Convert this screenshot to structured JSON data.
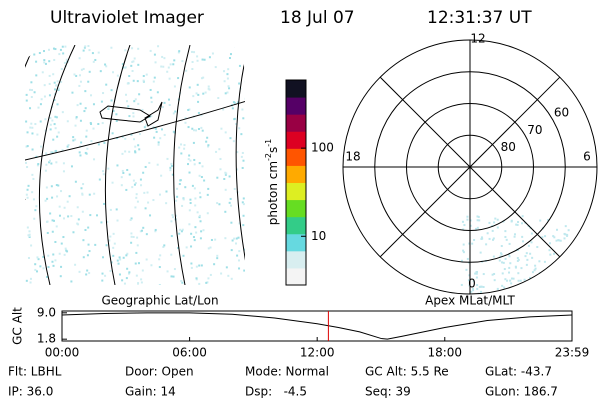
{
  "header": {
    "title": "Ultraviolet Imager",
    "date": "18 Jul 07",
    "time": "12:31:37 UT"
  },
  "map": {
    "caption": "Geographic Lat/Lon"
  },
  "colorbar": {
    "label": "photon cm",
    "label_exp1": "-2",
    "label_unit2": "s",
    "label_exp2": "-1",
    "lim": [
      2.8,
      593
    ],
    "ticks": [
      10,
      100
    ],
    "log": true,
    "colors": [
      "#f4f4f4",
      "#d8eef0",
      "#66d9e0",
      "#33cc88",
      "#66dd22",
      "#ddee22",
      "#ffaa00",
      "#ff5500",
      "#dd0022",
      "#990044",
      "#550066",
      "#111122"
    ]
  },
  "polar": {
    "caption": "Apex MLat/MLT",
    "mlt_labels": {
      "top": "12",
      "left": "18",
      "right": "6",
      "bottom": "0"
    },
    "rings": [
      80,
      70,
      60
    ]
  },
  "chart_data": {
    "type": "line",
    "ylabel": "GC Alt",
    "x": [
      0,
      2,
      4,
      6,
      8,
      10,
      12,
      13,
      14,
      15,
      15.3,
      16,
      18,
      20,
      22,
      23.983
    ],
    "values": [
      8.4,
      8.8,
      9.0,
      9.0,
      8.6,
      7.6,
      6.0,
      5.0,
      3.8,
      2.0,
      1.8,
      2.6,
      5.0,
      6.9,
      7.9,
      8.4
    ],
    "color": "#000000",
    "marker_color": "#dd0000",
    "xlim": [
      0,
      23.983
    ],
    "ylim": [
      1.3,
      9.5
    ],
    "xticks": [
      {
        "value": 0,
        "label": "00:00"
      },
      {
        "value": 6,
        "label": "06:00"
      },
      {
        "value": 12,
        "label": "12:00"
      },
      {
        "value": 18,
        "label": "18:00"
      },
      {
        "value": 23.983,
        "label": "23:59"
      }
    ],
    "yticks": [
      {
        "value": 9,
        "label": "9.0"
      },
      1.8
    ]
  },
  "footer": {
    "rows": [
      [
        "Flt: LBHL",
        "Door: Open",
        "Mode: Normal",
        "GC Alt: 5.5 Re",
        "GLat: -43.7"
      ],
      [
        "IP: 36.0",
        "Gain: 14",
        "Dsp:   -4.5",
        "Seq: 39",
        "GLon: 186.7"
      ]
    ]
  }
}
